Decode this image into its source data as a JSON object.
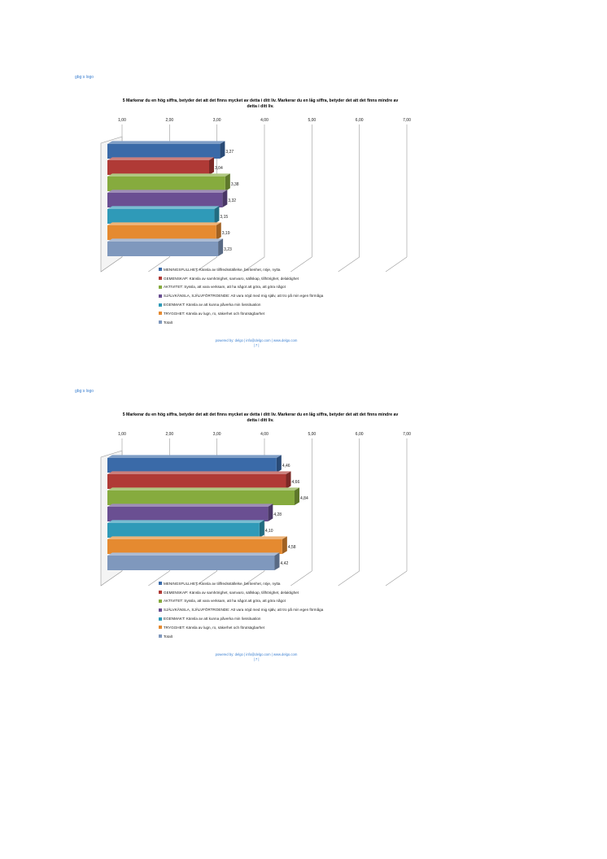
{
  "pages": [
    {
      "logo": "gbg:s logo",
      "footer": {
        "line1": "powered by: delgo | info@delgo.com | www.delgo.com",
        "line2": "| 7 |"
      }
    },
    {
      "logo": "gbg:s logo",
      "footer": {
        "line1": "powered by: delgo | info@delgo.com | www.delgo.com",
        "line2": "| 7 |"
      }
    }
  ],
  "chart_data": [
    {
      "type": "bar",
      "orientation": "horizontal",
      "style": "3d",
      "title": "5 Markerar du en hög siffra, betyder det att det finns mycket av detta i ditt liv. Markerar du en låg siffra, betyder det att det finns mindre av detta i ditt liv.",
      "tick_labels": [
        "1,00",
        "2,00",
        "3,00",
        "4,00",
        "5,00",
        "6,00",
        "7,00"
      ],
      "xlim": [
        1,
        7
      ],
      "grid": true,
      "legend_position": "bottom",
      "series": [
        {
          "name": "MENINGSFULLHET: Känsla av tillfredsställelse, beröenhet, nöje, nytta",
          "value": 3.27,
          "label": "3,27",
          "color": "#3a6aa8"
        },
        {
          "name": "GEMENSKAP: Känsla av samhörighet, samvaro, sällskap, tillhörighet, delaktighet",
          "value": 3.04,
          "label": "3,04",
          "color": "#b03a36"
        },
        {
          "name": "AKTIVITET: Syssla, att vara verksam, att ha något att göra, att göra något",
          "value": 3.38,
          "label": "3,38",
          "color": "#86ab3e"
        },
        {
          "name": "SJÄLVKÄNSLA, SJÄLVFÖRTROENDE: Att vara nöjd med mig själv, att tro på min egen förmåga",
          "value": 3.32,
          "label": "3,32",
          "color": "#6a4f92"
        },
        {
          "name": "EGENMAKT: Känsla av att kunna påverka min livssituation",
          "value": 3.15,
          "label": "3,15",
          "color": "#2f9ab8"
        },
        {
          "name": "TRYGGHET: Känsla av lugn, ro, säkerhet och förutsägbarhet",
          "value": 3.19,
          "label": "3,19",
          "color": "#e58a30"
        },
        {
          "name": "Totalt",
          "value": 3.23,
          "label": "3,23",
          "color": "#7f98bd"
        }
      ]
    },
    {
      "type": "bar",
      "orientation": "horizontal",
      "style": "3d",
      "title": "5 Markerar du en hög siffra, betyder det att det finns mycket av detta i ditt liv. Markerar du en låg siffra, betyder det att det finns mindre av detta i ditt liv.",
      "tick_labels": [
        "1,00",
        "2,00",
        "3,00",
        "4,00",
        "5,00",
        "6,00",
        "7,00"
      ],
      "xlim": [
        1,
        7
      ],
      "grid": true,
      "legend_position": "bottom",
      "series": [
        {
          "name": "MENINGSFULLHET: Känsla av tillfredsställelse, beröenhet, nöje, nytta",
          "value": 4.46,
          "label": "4,46",
          "color": "#3a6aa8"
        },
        {
          "name": "GEMENSKAP: Känsla av samhörighet, samvaro, sällskap, tillhörighet, delaktighet",
          "value": 4.66,
          "label": "4,66",
          "color": "#b03a36"
        },
        {
          "name": "AKTIVITET: Syssla, att vara verksam, att ha något att göra, att göra något",
          "value": 4.84,
          "label": "4,84",
          "color": "#86ab3e"
        },
        {
          "name": "SJÄLVKÄNSLA, SJÄLVFÖRTROENDE: Att vara nöjd med mig själv, att tro på min egen förmåga",
          "value": 4.28,
          "label": "4,28",
          "color": "#6a4f92"
        },
        {
          "name": "EGENMAKT: Känsla av att kunna påverka min livssituation",
          "value": 4.1,
          "label": "4,10",
          "color": "#2f9ab8"
        },
        {
          "name": "TRYGGHET: Känsla av lugn, ro, säkerhet och förutsägbarhet",
          "value": 4.58,
          "label": "4,58",
          "color": "#e58a30"
        },
        {
          "name": "Totalt",
          "value": 4.42,
          "label": "4,42",
          "color": "#7f98bd"
        }
      ]
    }
  ]
}
